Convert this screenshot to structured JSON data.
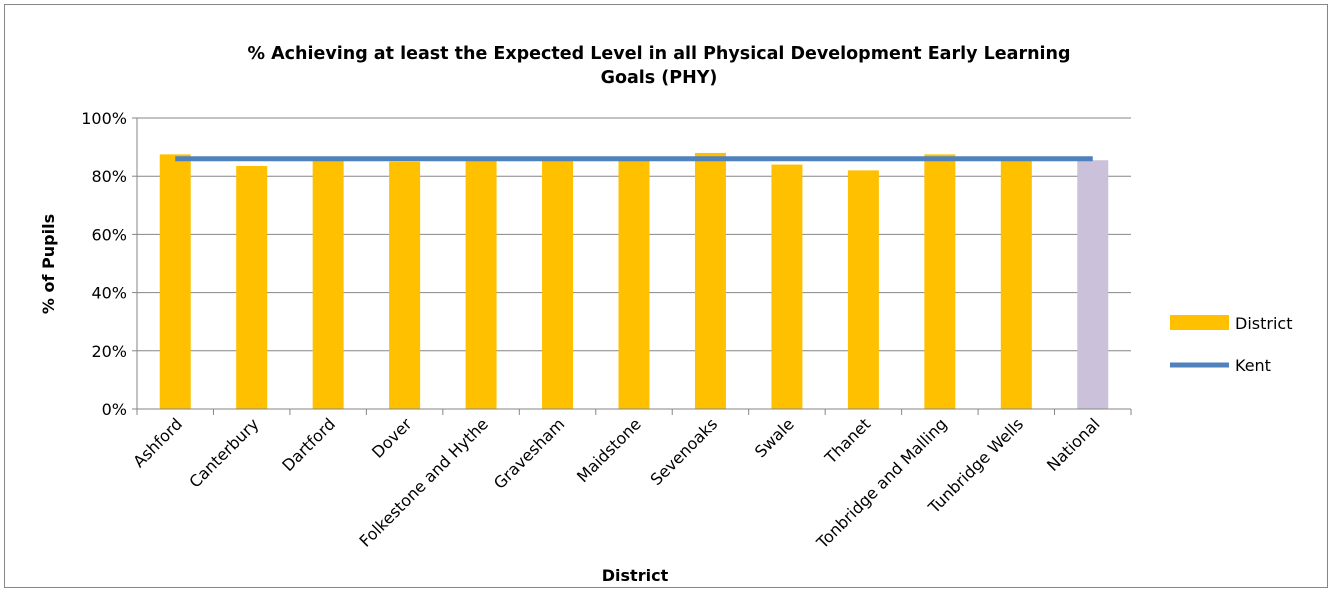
{
  "chart_data": {
    "type": "bar",
    "title": "% Achieving at least the Expected Level in all Physical Development Early Learning Goals (PHY)",
    "title_lines": [
      "% Achieving at least the Expected Level in all Physical Development Early Learning",
      "Goals (PHY)"
    ],
    "xlabel": "District",
    "ylabel": "% of Pupils",
    "ylim": [
      0,
      100
    ],
    "yticks": [
      "0%",
      "20%",
      "40%",
      "60%",
      "80%",
      "100%"
    ],
    "grid": true,
    "legend_position": "right",
    "categories": [
      "Ashford",
      "Canterbury",
      "Dartford",
      "Dover",
      "Folkestone and Hythe",
      "Gravesham",
      "Maidstone",
      "Sevenoaks",
      "Swale",
      "Thanet",
      "Tonbridge and Malling",
      "Tunbridge Wells",
      "National"
    ],
    "series": [
      {
        "name": "District",
        "type": "bar",
        "color": "#FFC000",
        "highlight_color": "#CCC1DA",
        "highlight_category": "National",
        "values": [
          87.5,
          83.5,
          86.5,
          85,
          86,
          86,
          86,
          88,
          84,
          82,
          87.5,
          86.5,
          85.5
        ]
      },
      {
        "name": "Kent",
        "type": "line",
        "color": "#4F81BD",
        "values": [
          86,
          86,
          86,
          86,
          86,
          86,
          86,
          86,
          86,
          86,
          86,
          86,
          86
        ]
      }
    ]
  }
}
